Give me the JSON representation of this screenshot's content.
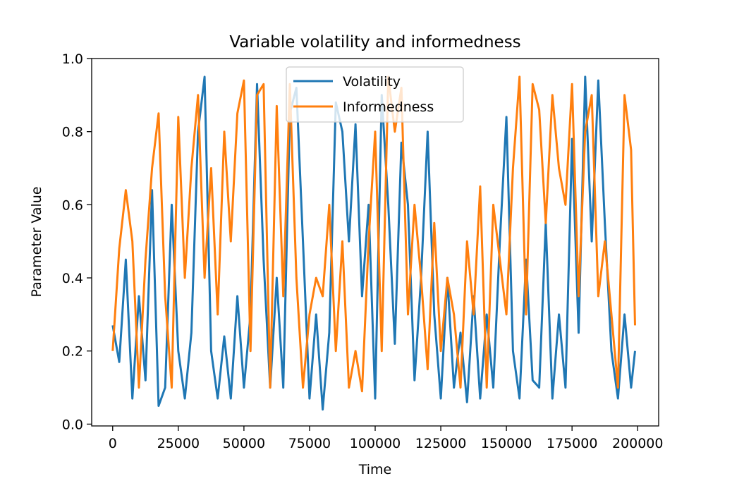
{
  "chart_data": {
    "type": "line",
    "title": "Variable volatility and informedness",
    "xlabel": "Time",
    "ylabel": "Parameter Value",
    "xlim": [
      -8000,
      208000
    ],
    "ylim": [
      -0.005,
      1.0
    ],
    "xticks": [
      0,
      25000,
      50000,
      75000,
      100000,
      125000,
      150000,
      175000,
      200000
    ],
    "xtick_labels": [
      "0",
      "25000",
      "50000",
      "75000",
      "100000",
      "125000",
      "150000",
      "175000",
      "200000"
    ],
    "yticks": [
      0.0,
      0.2,
      0.4,
      0.6,
      0.8,
      1.0
    ],
    "ytick_labels": [
      "0.0",
      "0.2",
      "0.4",
      "0.6",
      "0.8",
      "1.0"
    ],
    "grid": false,
    "legend_position": "upper center",
    "series": [
      {
        "name": "Volatility",
        "color": "#1f77b4",
        "x": [
          0,
          2500,
          5000,
          7500,
          10000,
          12500,
          15000,
          17500,
          20000,
          22500,
          25000,
          27500,
          30000,
          32500,
          35000,
          37500,
          40000,
          42500,
          45000,
          47500,
          50000,
          52500,
          55000,
          57500,
          60000,
          62500,
          65000,
          67500,
          70000,
          72500,
          75000,
          77500,
          80000,
          82500,
          85000,
          87500,
          90000,
          92500,
          95000,
          97500,
          100000,
          102500,
          105000,
          107500,
          110000,
          112500,
          115000,
          117500,
          120000,
          122500,
          125000,
          127500,
          130000,
          132500,
          135000,
          137500,
          140000,
          142500,
          145000,
          147500,
          150000,
          152500,
          155000,
          157500,
          160000,
          162500,
          165000,
          167500,
          170000,
          172500,
          175000,
          177500,
          180000,
          182500,
          185000,
          187500,
          190000,
          192500,
          195000,
          197500,
          199000
        ],
        "values": [
          0.27,
          0.17,
          0.45,
          0.07,
          0.35,
          0.12,
          0.64,
          0.05,
          0.1,
          0.6,
          0.2,
          0.07,
          0.25,
          0.8,
          0.95,
          0.2,
          0.07,
          0.24,
          0.07,
          0.35,
          0.1,
          0.3,
          0.93,
          0.45,
          0.1,
          0.4,
          0.1,
          0.85,
          0.92,
          0.5,
          0.07,
          0.3,
          0.04,
          0.25,
          0.88,
          0.8,
          0.5,
          0.82,
          0.35,
          0.6,
          0.07,
          0.9,
          0.6,
          0.22,
          0.77,
          0.6,
          0.12,
          0.4,
          0.8,
          0.3,
          0.07,
          0.4,
          0.1,
          0.25,
          0.06,
          0.35,
          0.07,
          0.3,
          0.1,
          0.5,
          0.84,
          0.2,
          0.07,
          0.45,
          0.12,
          0.1,
          0.55,
          0.07,
          0.3,
          0.1,
          0.78,
          0.25,
          0.95,
          0.5,
          0.94,
          0.55,
          0.2,
          0.07,
          0.3,
          0.1,
          0.2
        ]
      },
      {
        "name": "Informedness",
        "color": "#ff7f0e",
        "x": [
          0,
          2500,
          5000,
          7500,
          10000,
          12500,
          15000,
          17500,
          20000,
          22500,
          25000,
          27500,
          30000,
          32500,
          35000,
          37500,
          40000,
          42500,
          45000,
          47500,
          50000,
          52500,
          55000,
          57500,
          60000,
          62500,
          65000,
          67500,
          70000,
          72500,
          75000,
          77500,
          80000,
          82500,
          85000,
          87500,
          90000,
          92500,
          95000,
          97500,
          100000,
          102500,
          105000,
          107500,
          110000,
          112500,
          115000,
          117500,
          120000,
          122500,
          125000,
          127500,
          130000,
          132500,
          135000,
          137500,
          140000,
          142500,
          145000,
          147500,
          150000,
          152500,
          155000,
          157500,
          160000,
          162500,
          165000,
          167500,
          170000,
          172500,
          175000,
          177500,
          180000,
          182500,
          185000,
          187500,
          190000,
          192500,
          195000,
          197500,
          199000
        ],
        "values": [
          0.2,
          0.48,
          0.64,
          0.5,
          0.1,
          0.45,
          0.7,
          0.85,
          0.35,
          0.1,
          0.84,
          0.4,
          0.7,
          0.9,
          0.4,
          0.7,
          0.3,
          0.8,
          0.5,
          0.85,
          0.94,
          0.2,
          0.9,
          0.93,
          0.1,
          0.87,
          0.35,
          0.93,
          0.4,
          0.1,
          0.3,
          0.4,
          0.35,
          0.6,
          0.2,
          0.5,
          0.1,
          0.2,
          0.09,
          0.5,
          0.8,
          0.2,
          0.95,
          0.8,
          0.92,
          0.3,
          0.6,
          0.4,
          0.15,
          0.55,
          0.2,
          0.4,
          0.3,
          0.1,
          0.5,
          0.3,
          0.65,
          0.1,
          0.6,
          0.45,
          0.3,
          0.7,
          0.95,
          0.3,
          0.93,
          0.86,
          0.55,
          0.9,
          0.7,
          0.6,
          0.93,
          0.35,
          0.8,
          0.9,
          0.35,
          0.5,
          0.3,
          0.1,
          0.9,
          0.75,
          0.27
        ]
      }
    ]
  }
}
